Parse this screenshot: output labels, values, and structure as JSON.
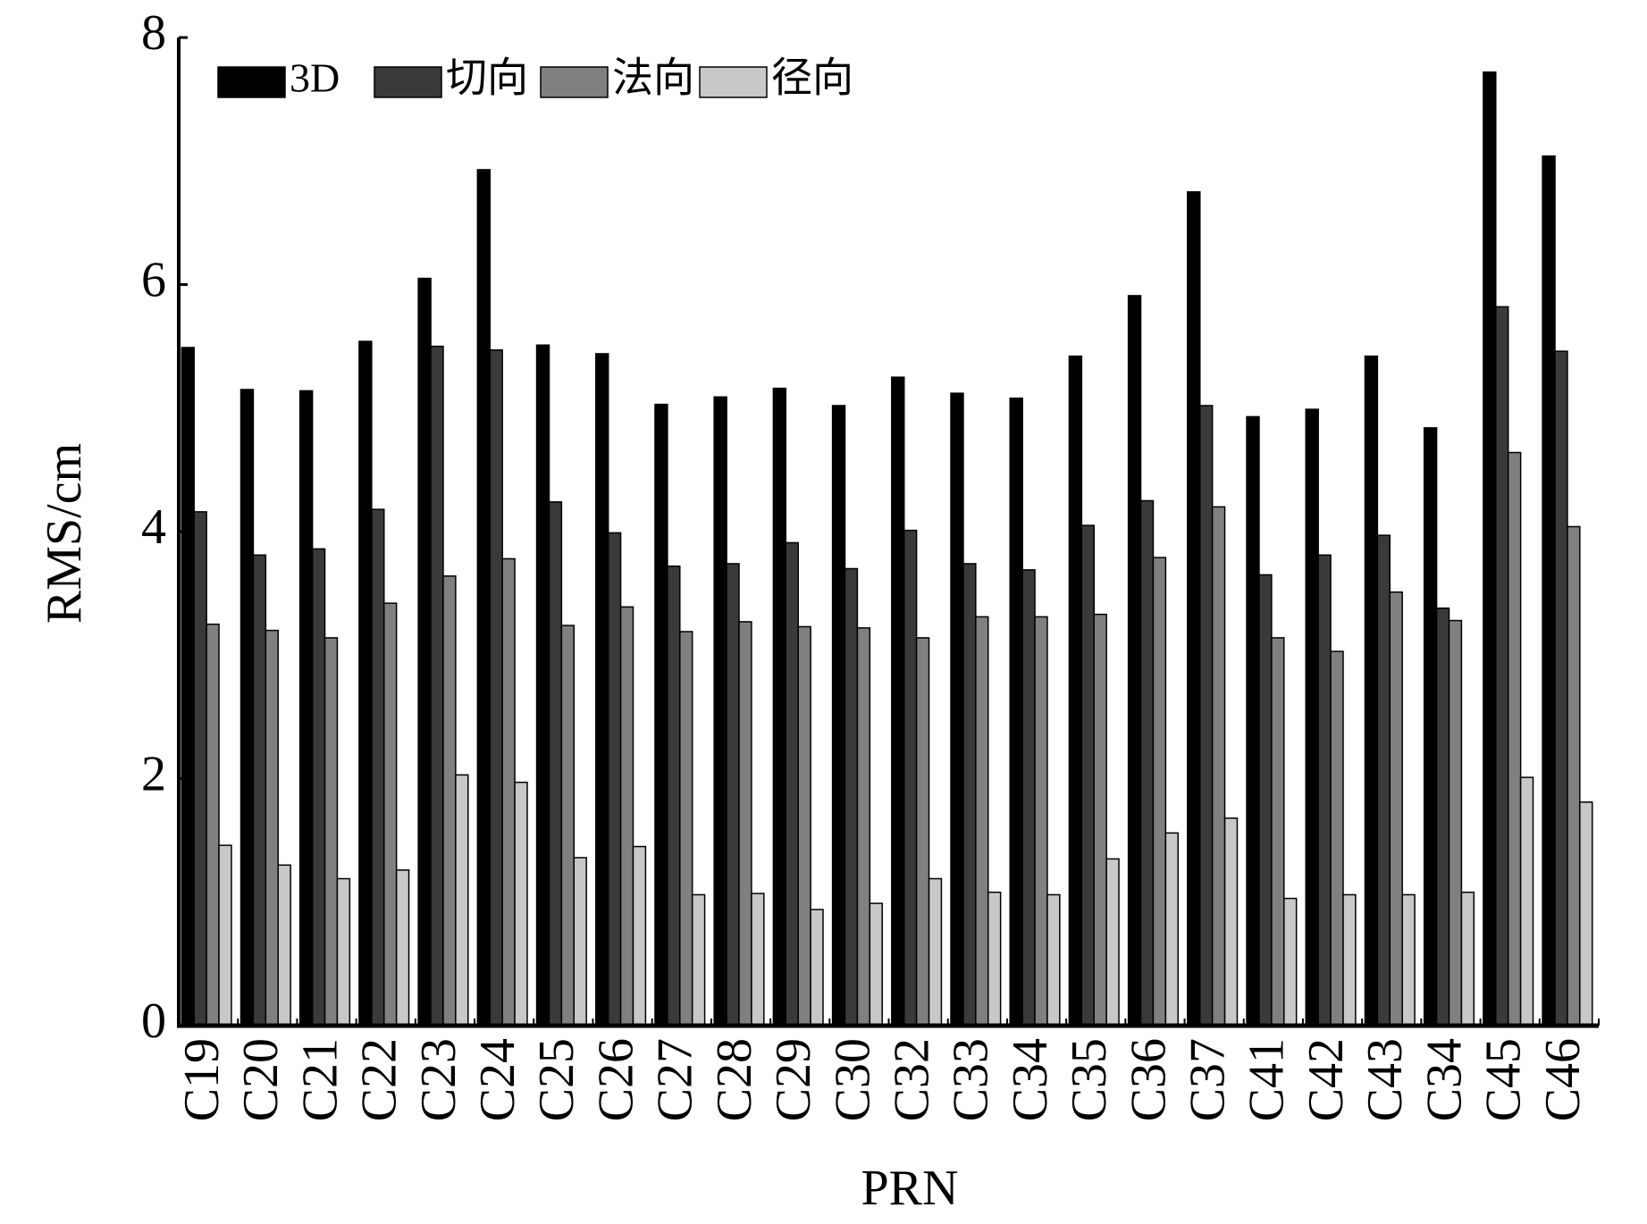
{
  "chart_data": {
    "type": "bar",
    "x_label": "PRN",
    "y_label": "RMS/cm",
    "categories": [
      "C19",
      "C20",
      "C21",
      "C22",
      "C23",
      "C24",
      "C25",
      "C26",
      "C27",
      "C28",
      "C29",
      "C30",
      "C32",
      "C33",
      "C34",
      "C35",
      "C36",
      "C37",
      "C41",
      "C42",
      "C43",
      "C34",
      "C45",
      "C46"
    ],
    "series": [
      {
        "name": "3D",
        "color": "#000000",
        "values": [
          5.49,
          5.15,
          5.14,
          5.54,
          6.05,
          6.93,
          5.51,
          5.44,
          5.03,
          5.09,
          5.16,
          5.02,
          5.25,
          5.12,
          5.08,
          5.42,
          5.91,
          6.75,
          4.93,
          4.99,
          5.42,
          4.84,
          7.72,
          7.04
        ]
      },
      {
        "name": "切向",
        "color": "#3a3a3a",
        "values": [
          4.16,
          3.81,
          3.86,
          4.18,
          5.5,
          5.47,
          4.24,
          3.99,
          3.72,
          3.74,
          3.91,
          3.7,
          4.01,
          3.74,
          3.69,
          4.05,
          4.25,
          5.02,
          3.65,
          3.81,
          3.97,
          3.38,
          5.82,
          5.46
        ]
      },
      {
        "name": "法向",
        "color": "#808080",
        "values": [
          3.25,
          3.2,
          3.14,
          3.42,
          3.64,
          3.78,
          3.24,
          3.39,
          3.19,
          3.27,
          3.23,
          3.22,
          3.14,
          3.31,
          3.31,
          3.33,
          3.79,
          4.2,
          3.14,
          3.03,
          3.51,
          3.28,
          4.64,
          4.04
        ]
      },
      {
        "name": "径向",
        "color": "#c8c8c8",
        "values": [
          1.46,
          1.3,
          1.19,
          1.26,
          2.03,
          1.97,
          1.36,
          1.45,
          1.06,
          1.07,
          0.94,
          0.99,
          1.19,
          1.08,
          1.06,
          1.35,
          1.56,
          1.68,
          1.03,
          1.06,
          1.06,
          1.08,
          2.01,
          1.81
        ]
      }
    ],
    "ylim": [
      0,
      8
    ],
    "yticks": [
      0,
      2,
      4,
      6,
      8
    ],
    "legend": "top-left",
    "grid": false
  }
}
